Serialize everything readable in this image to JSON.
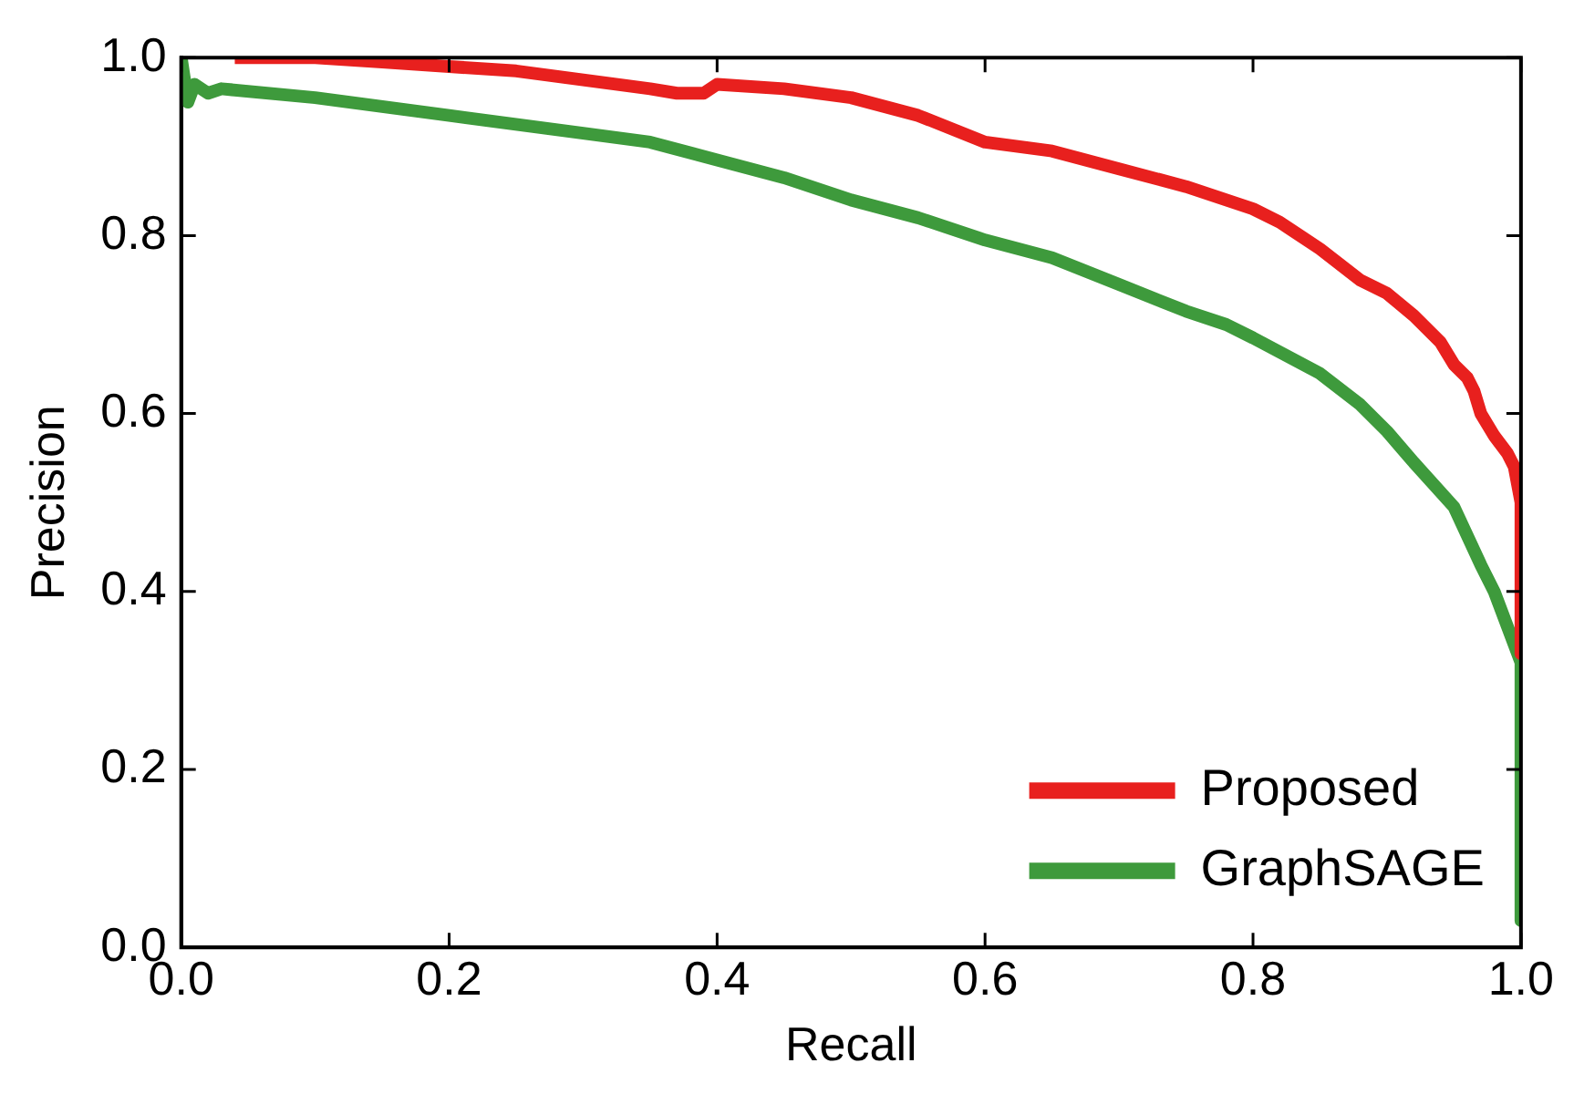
{
  "chart_data": {
    "type": "line",
    "xlabel": "Recall",
    "ylabel": "Precision",
    "xlim": [
      0,
      1
    ],
    "ylim": [
      0,
      1
    ],
    "xticks": [
      {
        "value": 0,
        "label": "0.0"
      },
      {
        "value": 0.2,
        "label": "0.2"
      },
      {
        "value": 0.4,
        "label": "0.4"
      },
      {
        "value": 0.6,
        "label": "0.6"
      },
      {
        "value": 0.8,
        "label": "0.8"
      },
      {
        "value": 1,
        "label": "1.0"
      }
    ],
    "yticks": [
      {
        "value": 0,
        "label": "0.0"
      },
      {
        "value": 0.2,
        "label": "0.2"
      },
      {
        "value": 0.4,
        "label": "0.4"
      },
      {
        "value": 0.6,
        "label": "0.6"
      },
      {
        "value": 0.8,
        "label": "0.8"
      },
      {
        "value": 1,
        "label": "1.0"
      }
    ],
    "grid": false,
    "legend": "bottom right",
    "marker": "none",
    "line_style": "solid",
    "series": [
      {
        "name": "Proposed",
        "color": "#e8201e",
        "x": [
          0.04,
          0.1,
          0.15,
          0.2,
          0.25,
          0.3,
          0.35,
          0.37,
          0.39,
          0.4,
          0.45,
          0.5,
          0.55,
          0.6,
          0.65,
          0.7,
          0.75,
          0.8,
          0.82,
          0.85,
          0.88,
          0.9,
          0.92,
          0.94,
          0.95,
          0.96,
          0.965,
          0.97,
          0.98,
          0.99,
          0.995,
          1.0,
          1.0
        ],
        "values": [
          1.0,
          1.0,
          0.995,
          0.99,
          0.985,
          0.975,
          0.965,
          0.96,
          0.96,
          0.97,
          0.965,
          0.955,
          0.935,
          0.905,
          0.895,
          0.875,
          0.855,
          0.83,
          0.815,
          0.785,
          0.75,
          0.735,
          0.71,
          0.68,
          0.655,
          0.64,
          0.625,
          0.6,
          0.575,
          0.555,
          0.54,
          0.5,
          0.33
        ]
      },
      {
        "name": "GraphSAGE",
        "color": "#3e9a3c",
        "x": [
          0,
          0.005,
          0.01,
          0.02,
          0.03,
          0.1,
          0.2,
          0.3,
          0.35,
          0.4,
          0.45,
          0.5,
          0.55,
          0.6,
          0.65,
          0.7,
          0.75,
          0.78,
          0.8,
          0.85,
          0.88,
          0.9,
          0.92,
          0.95,
          0.97,
          0.98,
          0.99,
          1.0,
          1.0
        ],
        "values": [
          1.0,
          0.95,
          0.97,
          0.96,
          0.965,
          0.955,
          0.935,
          0.915,
          0.905,
          0.885,
          0.865,
          0.84,
          0.82,
          0.795,
          0.775,
          0.745,
          0.715,
          0.7,
          0.685,
          0.645,
          0.61,
          0.58,
          0.545,
          0.495,
          0.43,
          0.4,
          0.36,
          0.32,
          0.03
        ]
      }
    ]
  }
}
